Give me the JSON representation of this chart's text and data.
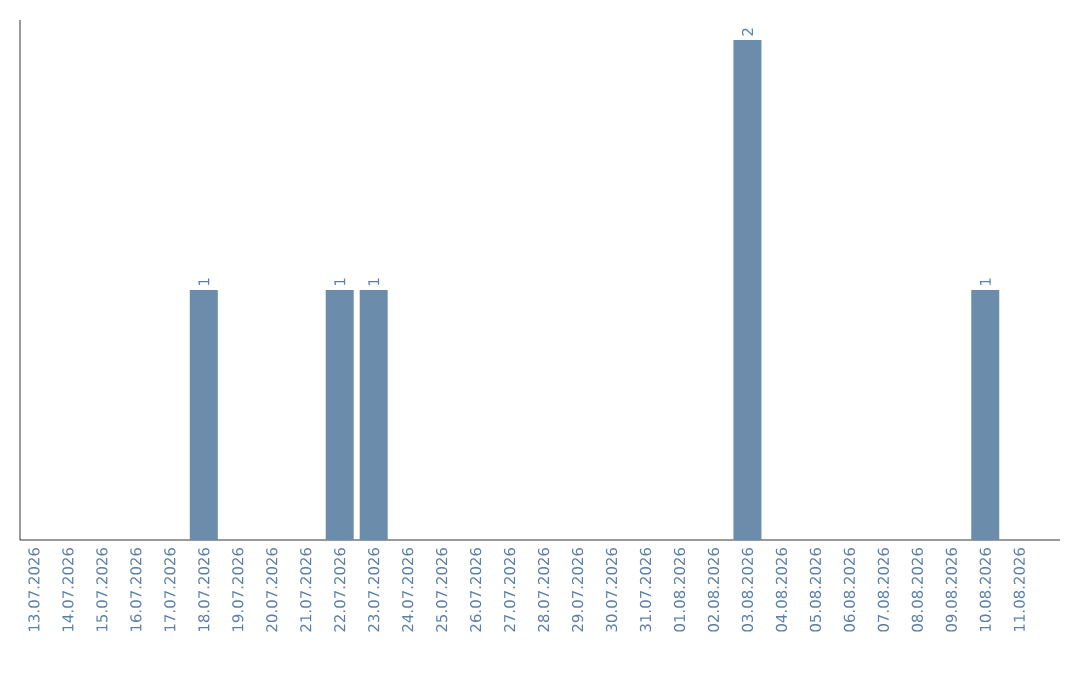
{
  "chart_data": {
    "type": "bar",
    "categories": [
      "13.07.2026",
      "14.07.2026",
      "15.07.2026",
      "16.07.2026",
      "17.07.2026",
      "18.07.2026",
      "19.07.2026",
      "20.07.2026",
      "21.07.2026",
      "22.07.2026",
      "23.07.2026",
      "24.07.2026",
      "25.07.2026",
      "26.07.2026",
      "27.07.2026",
      "28.07.2026",
      "29.07.2026",
      "30.07.2026",
      "31.07.2026",
      "01.08.2026",
      "02.08.2026",
      "03.08.2026",
      "04.08.2026",
      "05.08.2026",
      "06.08.2026",
      "07.08.2026",
      "08.08.2026",
      "09.08.2026",
      "10.08.2026",
      "11.08.2026"
    ],
    "values": [
      0,
      0,
      0,
      0,
      0,
      1,
      0,
      0,
      0,
      1,
      1,
      0,
      0,
      0,
      0,
      0,
      0,
      0,
      0,
      0,
      0,
      2,
      0,
      0,
      0,
      0,
      0,
      0,
      1,
      0
    ],
    "value_labels": [
      null,
      null,
      null,
      null,
      null,
      "1",
      null,
      null,
      null,
      "1",
      "1",
      null,
      null,
      null,
      null,
      null,
      null,
      null,
      null,
      null,
      null,
      "2",
      null,
      null,
      null,
      null,
      null,
      null,
      "1",
      null
    ],
    "color": "#6b8cab"
  }
}
